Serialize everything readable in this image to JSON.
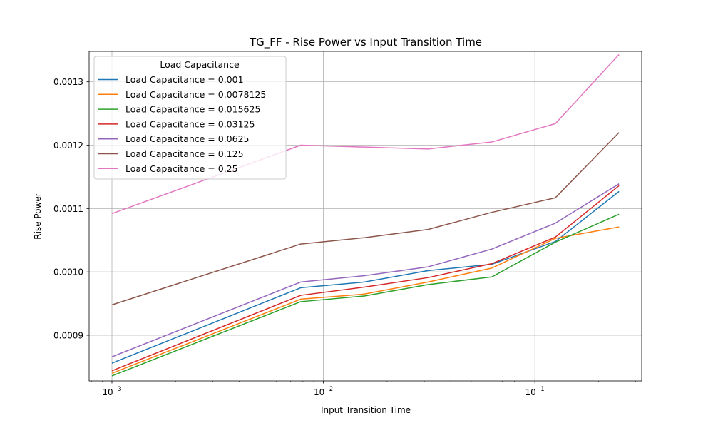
{
  "chart_data": {
    "type": "line",
    "title": "TG_FF - Rise Power vs Input Transition Time",
    "xlabel": "Input Transition Time",
    "ylabel": "Rise Power",
    "x_scale": "log",
    "xlim": [
      0.00078,
      0.32
    ],
    "ylim": [
      0.000828,
      0.001348
    ],
    "x_ticks": [
      {
        "value": 0.001,
        "base": "10",
        "exp": "−3"
      },
      {
        "value": 0.01,
        "base": "10",
        "exp": "−2"
      },
      {
        "value": 0.1,
        "base": "10",
        "exp": "−1"
      }
    ],
    "y_ticks": [
      {
        "value": 0.0009,
        "label": "0.0009"
      },
      {
        "value": 0.001,
        "label": "0.0010"
      },
      {
        "value": 0.0011,
        "label": "0.0011"
      },
      {
        "value": 0.0012,
        "label": "0.0012"
      },
      {
        "value": 0.0013,
        "label": "0.0013"
      }
    ],
    "grid": true,
    "legend_title": "Load Capacitance",
    "legend_position": "upper-left",
    "x": [
      0.001,
      0.0078125,
      0.015625,
      0.03125,
      0.0625,
      0.125,
      0.25
    ],
    "series": [
      {
        "name": "Load Capacitance = 0.001",
        "color": "#1f77b4",
        "values": [
          0.000856,
          0.000975,
          0.000984,
          0.001002,
          0.001012,
          0.001048,
          0.001127
        ]
      },
      {
        "name": "Load Capacitance = 0.0078125",
        "color": "#ff7f0e",
        "values": [
          0.00084,
          0.000957,
          0.000965,
          0.000984,
          0.001006,
          0.001053,
          0.001071
        ]
      },
      {
        "name": "Load Capacitance = 0.015625",
        "color": "#2ca02c",
        "values": [
          0.000836,
          0.000953,
          0.000962,
          0.00098,
          0.000992,
          0.001047,
          0.001091
        ]
      },
      {
        "name": "Load Capacitance = 0.03125",
        "color": "#d62728",
        "values": [
          0.000844,
          0.000963,
          0.000976,
          0.000991,
          0.001013,
          0.001055,
          0.001136
        ]
      },
      {
        "name": "Load Capacitance = 0.0625",
        "color": "#9467bd",
        "values": [
          0.000866,
          0.000984,
          0.000994,
          0.001008,
          0.001036,
          0.001077,
          0.001139
        ]
      },
      {
        "name": "Load Capacitance = 0.125",
        "color": "#8c564b",
        "values": [
          0.000948,
          0.001044,
          0.001054,
          0.001067,
          0.001094,
          0.001117,
          0.00122
        ]
      },
      {
        "name": "Load Capacitance = 0.25",
        "color": "#e377c2",
        "values": [
          0.001092,
          0.0012,
          0.001197,
          0.001194,
          0.001205,
          0.001234,
          0.001343
        ]
      }
    ]
  }
}
